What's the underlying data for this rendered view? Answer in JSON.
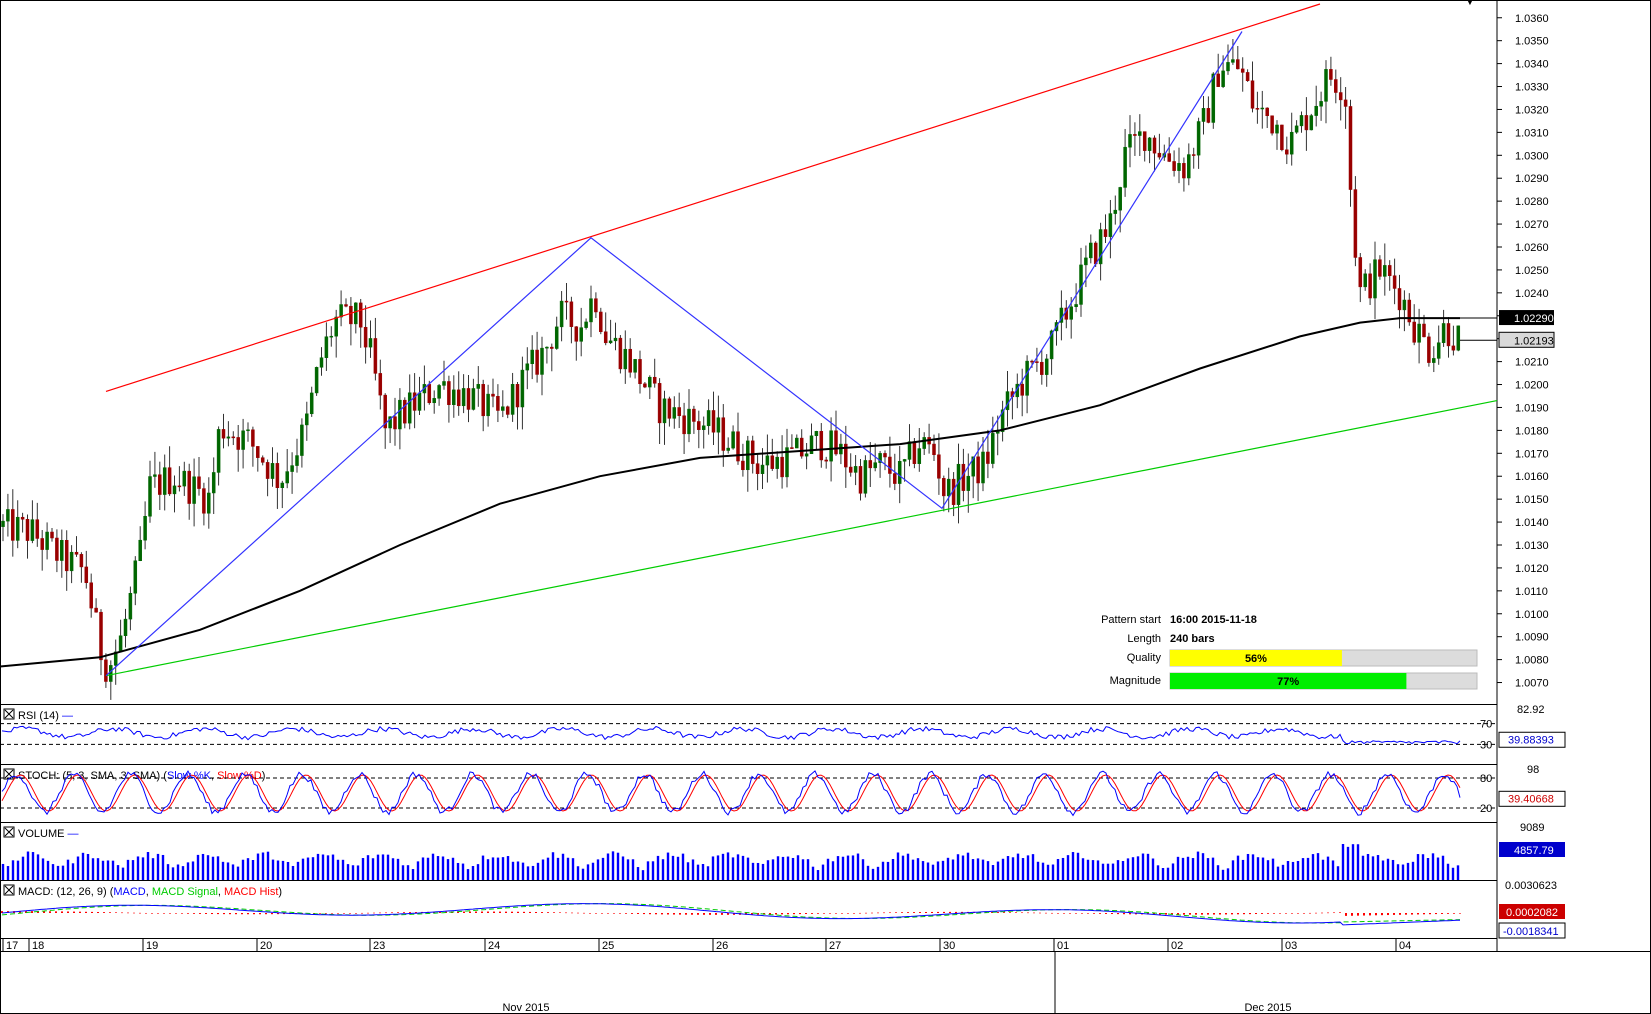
{
  "chart_data": {
    "type": "candlestick",
    "main": {
      "y_ticks": [
        "1.0360",
        "1.0350",
        "1.0340",
        "1.0330",
        "1.0320",
        "1.0310",
        "1.0300",
        "1.0290",
        "1.0280",
        "1.0270",
        "1.0260",
        "1.0250",
        "1.0240",
        "1.0230",
        "1.0220",
        "1.0210",
        "1.0200",
        "1.0190",
        "1.0180",
        "1.0170",
        "1.0160",
        "1.0150",
        "1.0140",
        "1.0130",
        "1.0120",
        "1.0110",
        "1.0100",
        "1.0090",
        "1.0080",
        "1.0070"
      ],
      "ylim": [
        1.0065,
        1.0366
      ],
      "price_tags": {
        "ma_value": "1.02290",
        "last_price": "1.02193"
      },
      "pattern_points": [
        {
          "label": "start",
          "price": 1.0073
        },
        {
          "label": "peak-1",
          "price": 1.0264
        },
        {
          "label": "trough",
          "price": 1.0146
        },
        {
          "label": "peak-2",
          "price": 1.0354
        }
      ],
      "resistance_line": {
        "color": "#ff0000"
      },
      "support_line": {
        "color": "#00cc00"
      },
      "moving_average": {
        "color": "#000000"
      },
      "candle_colors": {
        "up": "#006600",
        "down": "#990000"
      }
    },
    "info_panel": {
      "pattern_start_label": "Pattern start",
      "pattern_start_value": "16:00 2015-11-18",
      "length_label": "Length",
      "length_value": "240 bars",
      "quality_label": "Quality",
      "quality_text": "56%",
      "quality_fraction": 0.56,
      "magnitude_label": "Magnitude",
      "magnitude_text": "77%",
      "magnitude_fraction": 0.77
    },
    "rsi": {
      "title": "RSI (14)",
      "ticks": [
        "82.92",
        "70",
        "30"
      ],
      "current": "39.88393",
      "levels": [
        70,
        30
      ],
      "color": "#0000ff"
    },
    "stoch": {
      "title_prefix": "STOCH: (5, 3, SMA, 3, SMA) (",
      "k_label": "Slow %K",
      "d_label": "Slow %D",
      "ticks": [
        "98",
        "80",
        "20"
      ],
      "current": "39.40668",
      "k_color": "#0000ff",
      "d_color": "#ff0000"
    },
    "volume": {
      "title": "VOLUME",
      "ticks": [
        "9089"
      ],
      "current": "4857.79",
      "color": "#0000ff"
    },
    "macd": {
      "title_prefix": "MACD: (12, 26, 9) (",
      "macd_label": "MACD",
      "signal_label": "MACD Signal",
      "hist_label": "MACD Hist",
      "ticks": [
        "0.0030623"
      ],
      "current_hist": "0.0002082",
      "current_macd": "-0.0018341",
      "macd_color": "#0000ff",
      "signal_color": "#00cc00",
      "hist_color": "#ff0000"
    },
    "x_axis": {
      "days": [
        "17",
        "18",
        "19",
        "20",
        "23",
        "24",
        "25",
        "26",
        "27",
        "30",
        "01",
        "02",
        "03",
        "04"
      ],
      "months": [
        "Nov 2015",
        "Dec 2015"
      ]
    }
  }
}
